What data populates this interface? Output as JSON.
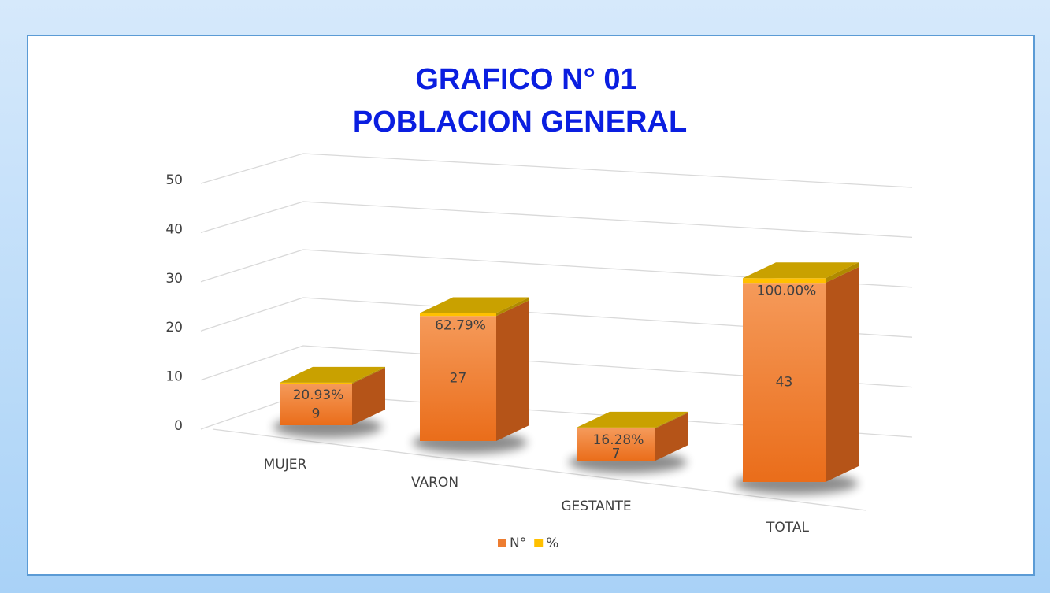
{
  "chart_data": {
    "type": "bar3d_stacked",
    "title": "GRAFICO N° 01",
    "subtitle": "POBLACION GENERAL",
    "categories": [
      "MUJER",
      "VARON",
      "GESTANTE",
      "TOTAL"
    ],
    "series": [
      {
        "name": "N°",
        "color": "#ed7d31",
        "values": [
          9,
          27,
          7,
          43
        ]
      },
      {
        "name": "%",
        "color": "#ffc000",
        "values": [
          0.2093,
          0.6279,
          0.1628,
          1.0
        ],
        "value_labels": [
          "20.93%",
          "62.79%",
          "16.28%",
          "100.00%"
        ]
      }
    ],
    "ylim": [
      0,
      50
    ],
    "yticks": [
      0,
      10,
      20,
      30,
      40,
      50
    ],
    "grid": true,
    "legend": "bottom"
  }
}
